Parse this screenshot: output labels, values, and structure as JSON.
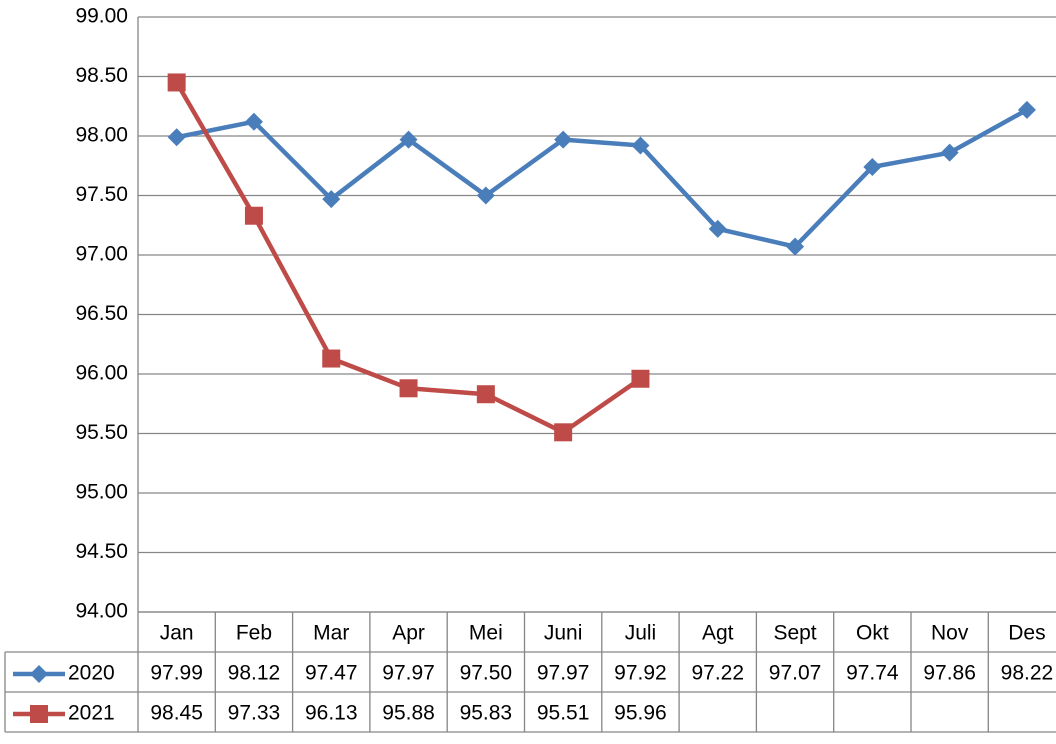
{
  "chart_data": {
    "type": "line",
    "categories": [
      "Jan",
      "Feb",
      "Mar",
      "Apr",
      "Mei",
      "Juni",
      "Juli",
      "Agt",
      "Sept",
      "Okt",
      "Nov",
      "Des"
    ],
    "series": [
      {
        "name": "2020",
        "color": "#4a7ebb",
        "marker": "diamond",
        "values": [
          97.99,
          98.12,
          97.47,
          97.97,
          97.5,
          97.97,
          97.92,
          97.22,
          97.07,
          97.74,
          97.86,
          98.22
        ],
        "value_labels": [
          "97.99",
          "98.12",
          "97.47",
          "97.97",
          "97.50",
          "97.97",
          "97.92",
          "97.22",
          "97.07",
          "97.74",
          "97.86",
          "98.22"
        ]
      },
      {
        "name": "2021",
        "color": "#be4b48",
        "marker": "square",
        "values": [
          98.45,
          97.33,
          96.13,
          95.88,
          95.83,
          95.51,
          95.96,
          null,
          null,
          null,
          null,
          null
        ],
        "value_labels": [
          "98.45",
          "97.33",
          "96.13",
          "95.88",
          "95.83",
          "95.51",
          "95.96",
          null,
          null,
          null,
          null,
          null
        ]
      }
    ],
    "ylim": [
      94,
      99
    ],
    "yticks": [
      {
        "value": 94,
        "label": "94.00"
      },
      {
        "value": 94.5,
        "label": "94.50"
      },
      {
        "value": 95,
        "label": "95.00"
      },
      {
        "value": 95.5,
        "label": "95.50"
      },
      {
        "value": 96,
        "label": "96.00"
      },
      {
        "value": 96.5,
        "label": "96.50"
      },
      {
        "value": 97,
        "label": "97.00"
      },
      {
        "value": 97.5,
        "label": "97.50"
      },
      {
        "value": 98,
        "label": "98.00"
      },
      {
        "value": 98.5,
        "label": "98.50"
      },
      {
        "value": 99,
        "label": "99.00"
      }
    ],
    "grid": true,
    "data_table": true
  }
}
